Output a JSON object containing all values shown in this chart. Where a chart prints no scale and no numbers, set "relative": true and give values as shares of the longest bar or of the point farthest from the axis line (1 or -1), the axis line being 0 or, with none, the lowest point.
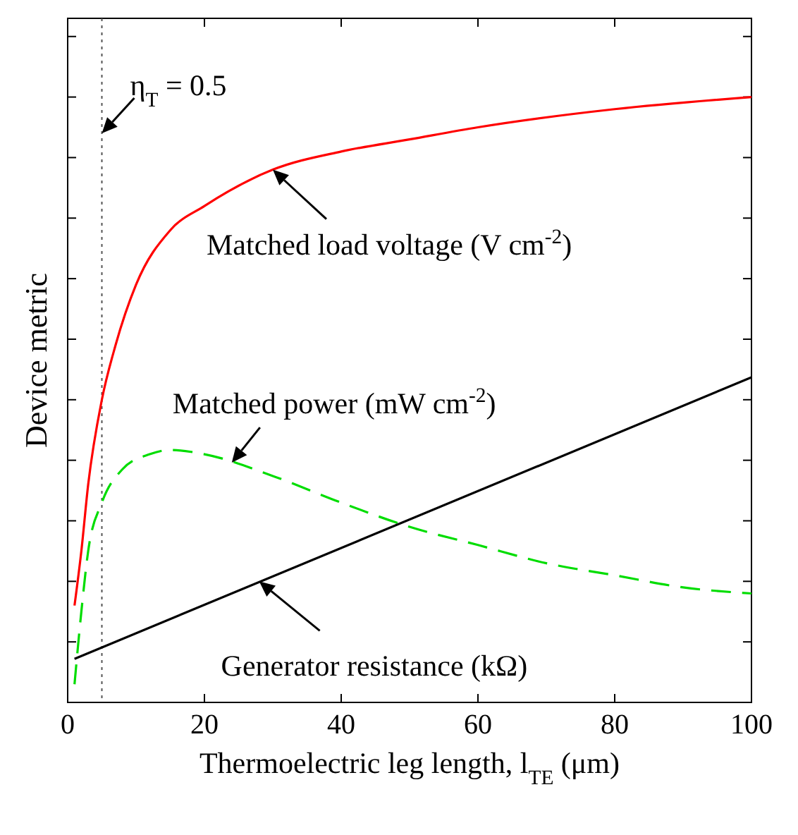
{
  "chart_data": {
    "type": "line",
    "relative": true,
    "xlabel": "Thermoelectric leg length, l$_{TE}$ (μm)",
    "ylabel": "Device metric",
    "xlim": [
      0,
      100
    ],
    "xticks": [
      0,
      20,
      40,
      60,
      80,
      100
    ],
    "series": [
      {
        "color": "#ff0000",
        "line_style": "solid",
        "x": [
          1,
          2,
          3,
          5,
          7,
          10,
          15,
          20,
          30,
          40,
          50,
          60,
          80,
          100
        ],
        "values": [
          0.16,
          0.25,
          0.36,
          0.5,
          0.59,
          0.69,
          0.78,
          0.82,
          0.88,
          0.91,
          0.93,
          0.95,
          0.98,
          1
        ]
      },
      {
        "color": "#00dd00",
        "line_style": "dashed",
        "x": [
          1,
          2,
          3,
          5,
          8,
          12,
          15,
          20,
          30,
          40,
          50,
          60,
          70,
          80,
          90,
          100
        ],
        "values": [
          0.03,
          0.15,
          0.25,
          0.33,
          0.385,
          0.41,
          0.417,
          0.41,
          0.374,
          0.33,
          0.29,
          0.26,
          0.23,
          0.21,
          0.19,
          0.18
        ]
      },
      {
        "color": "#000000",
        "line_style": "solid",
        "x": [
          1,
          100
        ],
        "values": [
          0.072,
          0.537
        ]
      }
    ],
    "ref_lines": [
      {
        "axis": "x",
        "value": 5,
        "line_style": "dotted",
        "color": "#555555"
      }
    ],
    "annotations": [
      {
        "text": "η$_{T}$ = 0.5",
        "x": 5,
        "y": 0.94
      },
      {
        "text": "Matched load voltage (V cm$^{-2}$)",
        "x": 30,
        "y": 0.88
      },
      {
        "text": "Matched power (mW cm$^{-2}$)",
        "x": 24,
        "y": 0.396
      },
      {
        "text": "Generator resistance (kΩ)",
        "x": 28,
        "y": 0.2
      }
    ]
  }
}
